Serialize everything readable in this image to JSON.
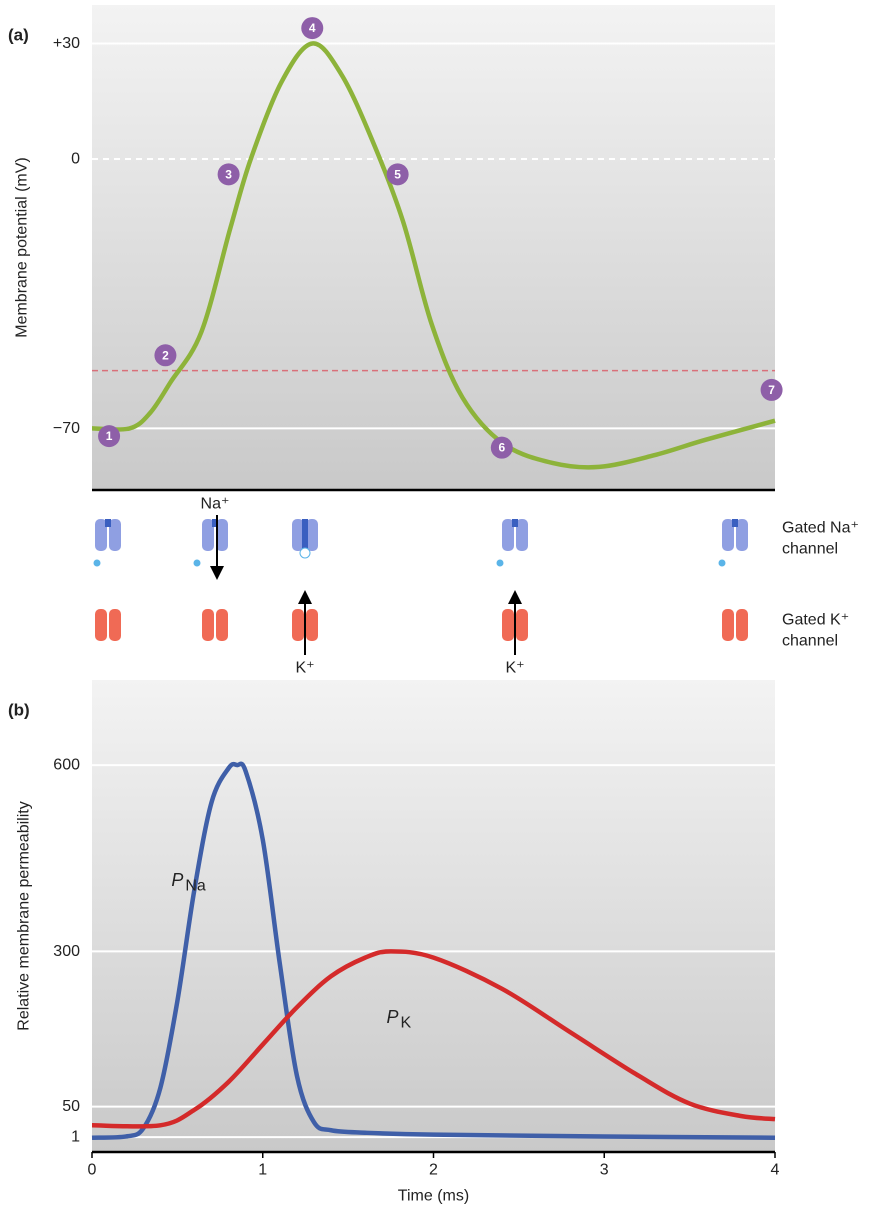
{
  "chart_data": [
    {
      "type": "line",
      "panel": "(a)",
      "ylabel": "Membrane potential (mV)",
      "x": [
        0,
        0.22,
        0.34,
        0.46,
        0.64,
        0.81,
        0.93,
        1.11,
        1.29,
        1.46,
        1.64,
        1.82,
        1.99,
        2.17,
        2.41,
        2.7,
        2.97,
        3.29,
        3.59,
        4.0
      ],
      "values": [
        -70,
        -70,
        -66,
        -58,
        -45,
        -18,
        0,
        20,
        30,
        22,
        5,
        -16,
        -43,
        -62,
        -74,
        -79,
        -80,
        -77,
        -73,
        -68
      ],
      "color": "#8db33a",
      "xlim": [
        0,
        4
      ],
      "ylim": [
        -86,
        40
      ],
      "yticks": [
        {
          "value": 30,
          "label": "+30"
        },
        0,
        {
          "value": -70,
          "label": "−70"
        }
      ],
      "grid": true,
      "grid_dash": [
        false,
        true,
        false
      ],
      "threshold": -55,
      "threshold_color": "#d9707a",
      "annotations": [
        {
          "label": "1",
          "x": 0.1,
          "y": -72
        },
        {
          "label": "2",
          "x": 0.43,
          "y": -51
        },
        {
          "label": "3",
          "x": 0.8,
          "y": -4
        },
        {
          "label": "4",
          "x": 1.29,
          "y": 34
        },
        {
          "label": "5",
          "x": 1.79,
          "y": -4
        },
        {
          "label": "6",
          "x": 2.4,
          "y": -75
        },
        {
          "label": "7",
          "x": 3.98,
          "y": -60
        }
      ]
    },
    {
      "type": "line",
      "panel": "(b)",
      "xlabel": "Time (ms)",
      "ylabel": "Relative membrane permeability",
      "series": [
        {
          "name": "P",
          "subscript": "Na",
          "color": "#3f5fa8",
          "label_x": 0.5,
          "label_y": 415,
          "x": [
            0,
            0.2,
            0.3,
            0.4,
            0.5,
            0.6,
            0.7,
            0.8,
            0.85,
            0.9,
            1.0,
            1.1,
            1.2,
            1.3,
            1.4,
            1.6,
            2.0,
            3.0,
            4.0
          ],
          "values": [
            0,
            2,
            15,
            80,
            220,
            400,
            540,
            595,
            600,
            590,
            480,
            280,
            100,
            25,
            12,
            8,
            5,
            2,
            0
          ]
        },
        {
          "name": "P",
          "subscript": "K",
          "color": "#d42a2a",
          "label_x": 1.76,
          "label_y": 194,
          "x": [
            0,
            0.4,
            0.6,
            0.8,
            1.0,
            1.2,
            1.4,
            1.6,
            1.75,
            2.0,
            2.4,
            2.8,
            3.2,
            3.5,
            3.8,
            4.0
          ],
          "values": [
            20,
            20,
            45,
            90,
            150,
            210,
            260,
            290,
            300,
            290,
            240,
            170,
            100,
            55,
            35,
            30
          ]
        }
      ],
      "xlim": [
        0,
        4
      ],
      "ylim": [
        -23,
        737
      ],
      "xticks": [
        0,
        1,
        2,
        3,
        4
      ],
      "yticks": [
        1,
        50,
        300,
        600
      ],
      "grid": true
    }
  ],
  "channels": {
    "na_ion": "Na⁺",
    "k_ion": "K⁺",
    "na_label": [
      "Gated Na⁺",
      "channel"
    ],
    "k_label": [
      "Gated K⁺",
      "channel"
    ]
  }
}
